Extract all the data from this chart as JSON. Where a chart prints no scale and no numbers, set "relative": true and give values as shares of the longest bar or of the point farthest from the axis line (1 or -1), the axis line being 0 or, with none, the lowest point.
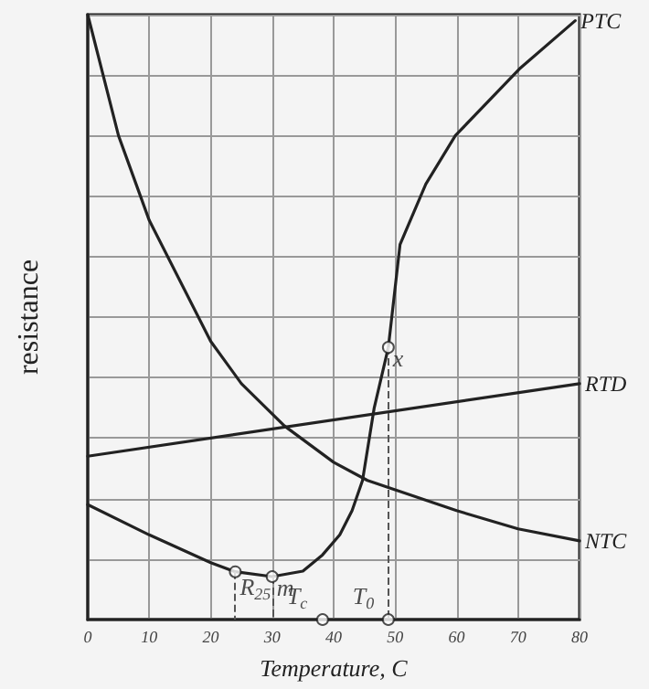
{
  "chart_data": {
    "type": "line",
    "relative": true,
    "xlabel": "Temperature, C",
    "ylabel": "resistance",
    "xlim": [
      0,
      80
    ],
    "xticks": [
      0,
      10,
      20,
      30,
      40,
      50,
      60,
      70,
      80
    ],
    "grid": true,
    "marker": "none",
    "legend": false,
    "series": [
      {
        "name": "NTC",
        "color": "#222222",
        "x": [
          0,
          5,
          10,
          20,
          25,
          32,
          40,
          45.5,
          60,
          70,
          80
        ],
        "values": [
          1,
          0.8,
          0.66,
          0.46,
          0.39,
          0.32,
          0.26,
          0.23,
          0.18,
          0.15,
          0.13
        ]
      },
      {
        "name": "RTD",
        "color": "#222222",
        "x": [
          0,
          80
        ],
        "values": [
          0.27,
          0.39
        ]
      },
      {
        "name": "PTC",
        "color": "#222222",
        "x": [
          0,
          10,
          20,
          24,
          30,
          35,
          38.2,
          41,
          43,
          44.7,
          46.6,
          48.9,
          50.8,
          55,
          59.8,
          70.2,
          79.3
        ],
        "values": [
          0.19,
          0.14,
          0.094,
          0.079,
          0.071,
          0.08,
          0.107,
          0.14,
          0.18,
          0.23,
          0.35,
          0.45,
          0.62,
          0.72,
          0.8,
          0.91,
          0.99
        ]
      }
    ],
    "annotations": [
      {
        "text": "R$_{25}$",
        "x": 24,
        "y": 0.079
      },
      {
        "text": "m",
        "x": 30,
        "y": 0.071
      },
      {
        "text": "T$_{c}$",
        "x": 38.2,
        "y": 0
      },
      {
        "text": "x",
        "x": 48.9,
        "y": 0.45
      },
      {
        "text": "T$_{0}$",
        "x": 48.9,
        "y": 0
      }
    ]
  }
}
